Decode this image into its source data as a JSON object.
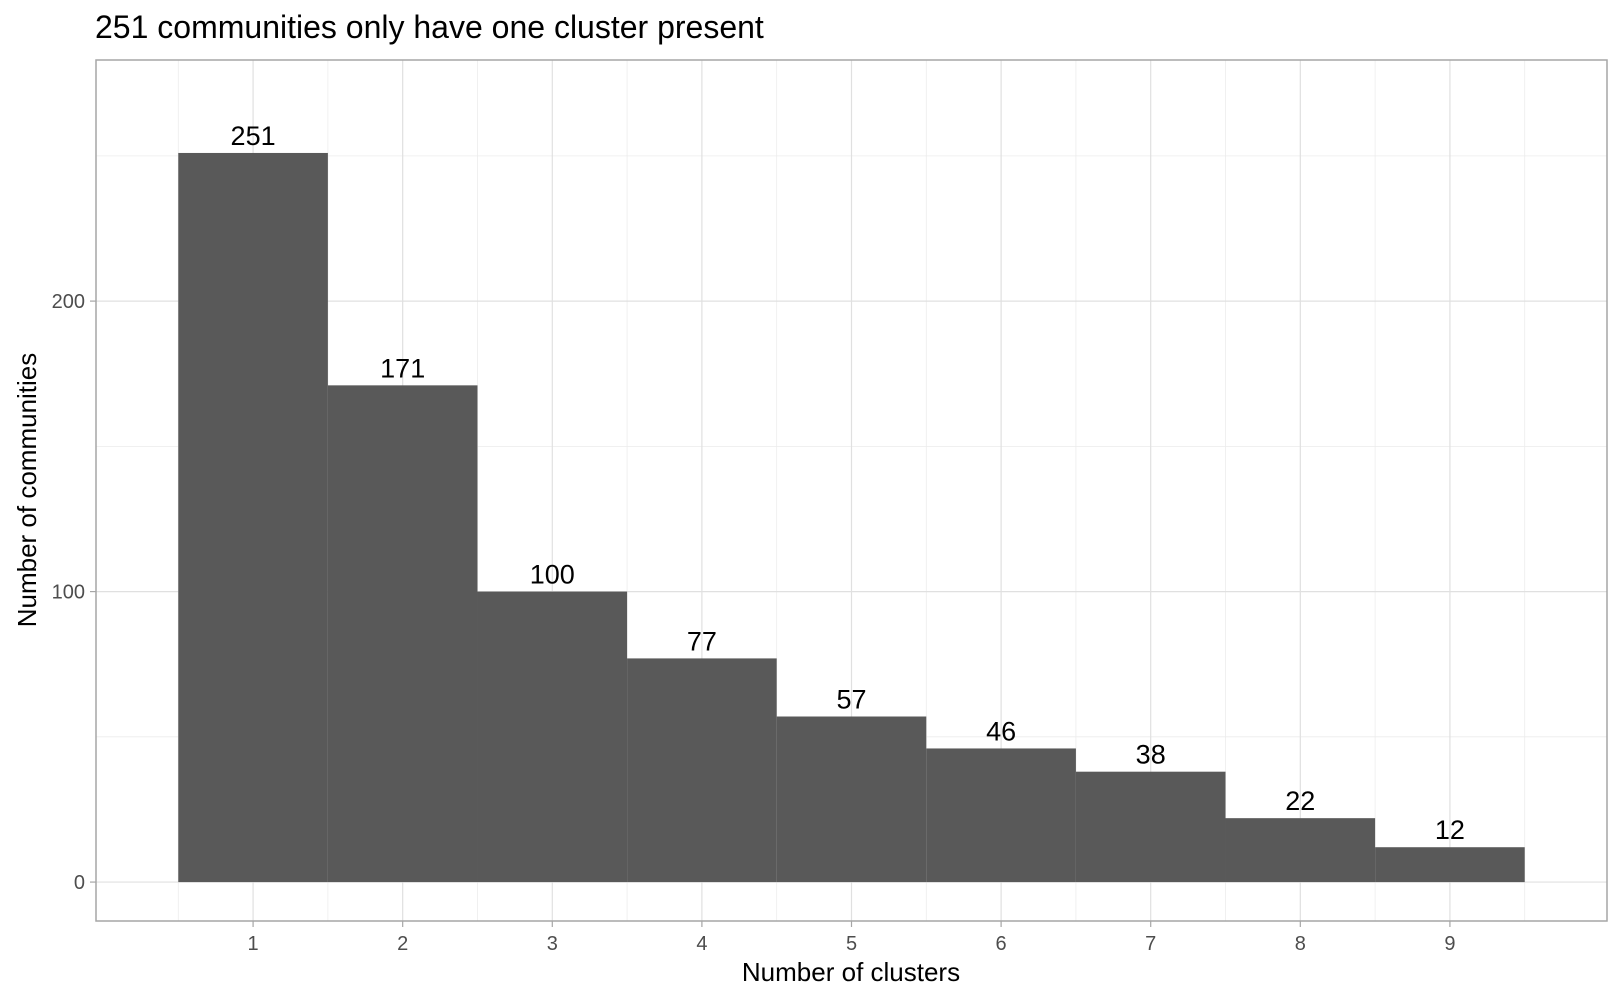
{
  "chart_data": {
    "type": "bar",
    "title": "251 communities only have one cluster present",
    "xlabel": "Number of clusters",
    "ylabel": "Number of communities",
    "categories": [
      "1",
      "2",
      "3",
      "4",
      "5",
      "6",
      "7",
      "8",
      "9"
    ],
    "values": [
      251,
      171,
      100,
      77,
      57,
      46,
      38,
      22,
      12
    ],
    "data_labels": [
      "251",
      "171",
      "100",
      "77",
      "57",
      "46",
      "38",
      "22",
      "12"
    ],
    "y_ticks": [
      0,
      100,
      200
    ],
    "y_tick_labels": [
      "0",
      "100",
      "200"
    ],
    "ylim": [
      -13.4,
      283
    ],
    "xlim": [
      -0.05,
      10.05
    ],
    "grid": true,
    "bar_color": "#595959",
    "legend": "none"
  }
}
